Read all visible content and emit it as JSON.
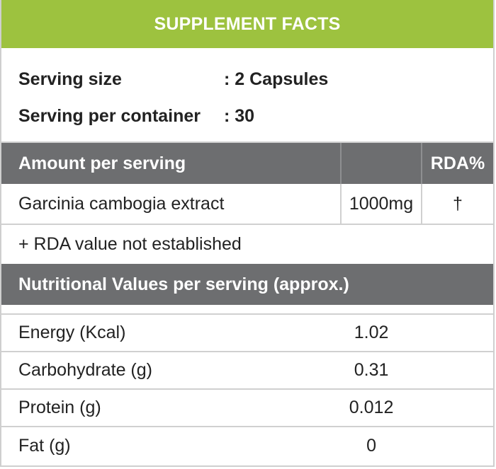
{
  "title": "SUPPLEMENT FACTS",
  "serving": {
    "size_label": "Serving size",
    "size_value": ": 2 Capsules",
    "per_container_label": "Serving per container",
    "per_container_value": ": 30"
  },
  "amount_table": {
    "header_label": "Amount per serving",
    "header_rda": "RDA%",
    "rows": [
      {
        "name": "Garcinia cambogia extract",
        "amount": "1000mg",
        "rda": "†"
      }
    ],
    "note": "+ RDA value not established"
  },
  "nutrition": {
    "header": "Nutritional Values per serving (approx.)",
    "rows": [
      {
        "name": "Energy (Kcal)",
        "value": "1.02"
      },
      {
        "name": "Carbohydrate (g)",
        "value": "0.31"
      },
      {
        "name": "Protein (g)",
        "value": "0.012"
      },
      {
        "name": "Fat (g)",
        "value": "0"
      }
    ]
  },
  "colors": {
    "title_bar": "#9dc23f",
    "header_gray": "#6d6e70",
    "divider": "#d0d0d0"
  }
}
